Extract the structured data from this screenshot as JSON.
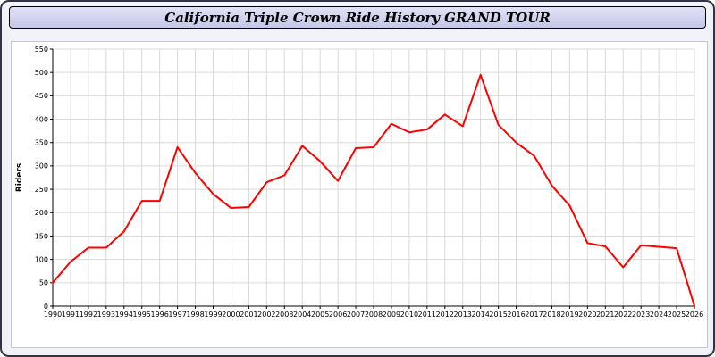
{
  "header": {
    "title": "California Triple Crown Ride History GRAND TOUR"
  },
  "chart_data": {
    "type": "line",
    "title": "California Triple Crown Ride History GRAND TOUR",
    "xlabel": "",
    "ylabel": "Riders",
    "ylim": [
      0,
      550
    ],
    "ytick_step": 50,
    "grid": true,
    "legend_position": "none",
    "line_color": "#ff0000",
    "x": [
      1990,
      1991,
      1992,
      1993,
      1994,
      1995,
      1996,
      1997,
      1998,
      1999,
      2000,
      2001,
      2002,
      2003,
      2004,
      2005,
      2006,
      2007,
      2008,
      2009,
      2010,
      2011,
      2012,
      2013,
      2014,
      2015,
      2016,
      2017,
      2018,
      2019,
      2020,
      2021,
      2022,
      2023,
      2024,
      2025,
      2026
    ],
    "series": [
      {
        "name": "Riders",
        "values": [
          50,
          95,
          125,
          125,
          160,
          225,
          225,
          340,
          285,
          240,
          210,
          212,
          265,
          280,
          343,
          310,
          268,
          338,
          340,
          390,
          372,
          378,
          410,
          385,
          495,
          388,
          350,
          322,
          258,
          215,
          135,
          128,
          83,
          130,
          127,
          124,
          0
        ]
      }
    ]
  },
  "colors": {
    "header_bg": "#c9c9ea",
    "page_bg": "#f2f2fa",
    "grid": "#d9d9d9",
    "axis": "#000000",
    "line": "#ff0000"
  }
}
